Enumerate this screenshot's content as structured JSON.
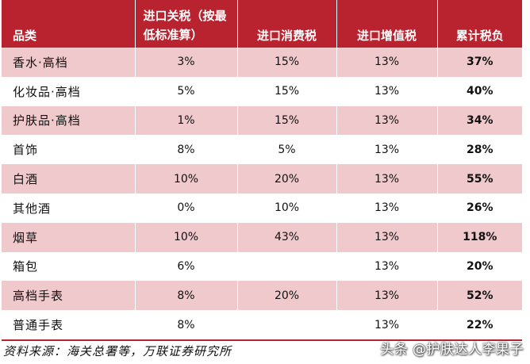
{
  "table": {
    "headers": [
      "品类",
      "进口关税（按最低标准算）",
      "进口消费税",
      "进口增值税",
      "累计税负"
    ],
    "rows": [
      [
        "香水·高档",
        "3%",
        "15%",
        "13%",
        "37%"
      ],
      [
        "化妆品·高档",
        "5%",
        "15%",
        "13%",
        "40%"
      ],
      [
        "护肤品·高档",
        "1%",
        "15%",
        "13%",
        "34%"
      ],
      [
        "首饰",
        "8%",
        "5%",
        "13%",
        "28%"
      ],
      [
        "白酒",
        "10%",
        "20%",
        "13%",
        "55%"
      ],
      [
        "其他酒",
        "0%",
        "10%",
        "13%",
        "26%"
      ],
      [
        "烟草",
        "10%",
        "43%",
        "13%",
        "118%"
      ],
      [
        "箱包",
        "6%",
        "",
        "13%",
        "20%"
      ],
      [
        "高档手表",
        "8%",
        "20%",
        "13%",
        "52%"
      ],
      [
        "普通手表",
        "8%",
        "",
        "13%",
        "22%"
      ]
    ]
  },
  "source": "资料来源：海关总署等，万联证券研究所",
  "watermark": "头条 @护肤达人李果子",
  "colors": {
    "header_bg": "#b9232f",
    "shaded_row": "#efc9cc"
  }
}
